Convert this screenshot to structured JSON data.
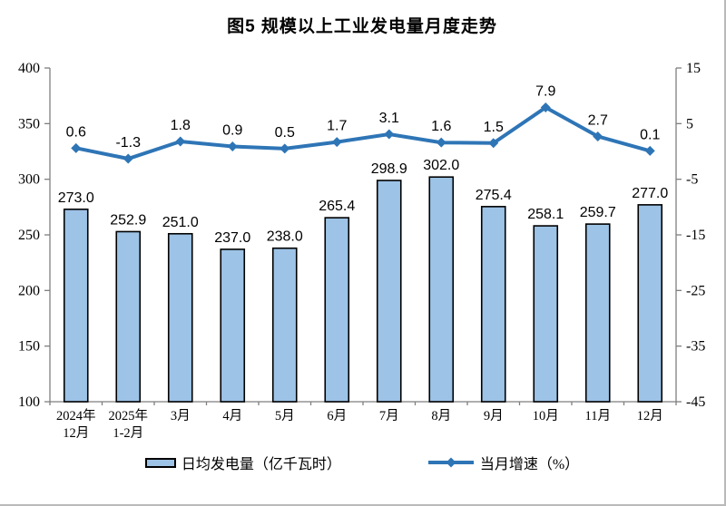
{
  "title": "图5 规模以上工业发电量月度走势",
  "legend": {
    "bar_label": "日均发电量（亿千瓦时）",
    "line_label": "当月增速（%）"
  },
  "colors": {
    "bar_fill": "#9DC3E6",
    "bar_border": "#000000",
    "line": "#2E75B6",
    "axis": "#7f7f7f",
    "label_text": "#000000"
  },
  "chart_data": {
    "type": "bar",
    "subtype": "bar-line-combo",
    "title": "图5 规模以上工业发电量月度走势",
    "categories": [
      "2024年\n12月",
      "2025年\n1-2月",
      "3月",
      "4月",
      "5月",
      "6月",
      "7月",
      "8月",
      "9月",
      "10月",
      "11月",
      "12月"
    ],
    "series": [
      {
        "name": "日均发电量（亿千瓦时）",
        "type": "bar",
        "axis": "left",
        "values": [
          273.0,
          252.9,
          251.0,
          237.0,
          238.0,
          265.4,
          298.9,
          302.0,
          275.4,
          258.1,
          259.7,
          277.0
        ]
      },
      {
        "name": "当月增速（%）",
        "type": "line",
        "axis": "right",
        "values": [
          0.6,
          -1.3,
          1.8,
          0.9,
          0.5,
          1.7,
          3.1,
          1.6,
          1.5,
          7.9,
          2.7,
          0.1
        ]
      }
    ],
    "left_axis": {
      "min": 100,
      "max": 400,
      "ticks": [
        100,
        150,
        200,
        250,
        300,
        350,
        400
      ]
    },
    "right_axis": {
      "min": -45,
      "max": 15,
      "ticks": [
        -45,
        -35,
        -25,
        -15,
        -5,
        5,
        15
      ]
    },
    "grid": false,
    "legend_position": "bottom",
    "data_labels": true
  }
}
